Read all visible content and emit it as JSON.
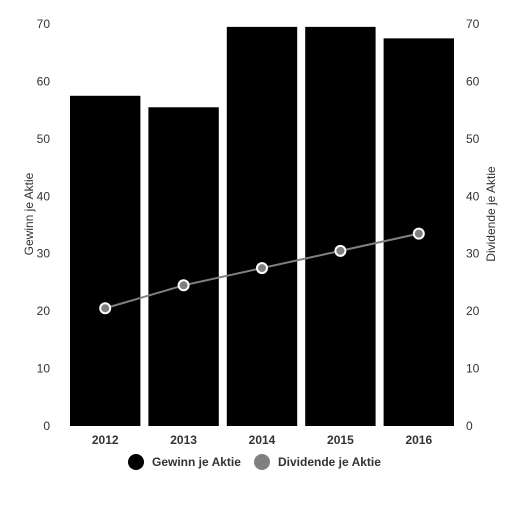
{
  "chart_data": {
    "type": "bar",
    "categories": [
      "2012",
      "2013",
      "2014",
      "2015",
      "2016"
    ],
    "series": [
      {
        "name": "Gewinn je Aktie",
        "type": "bar",
        "axis": "left",
        "color": "#000000",
        "values": [
          57.5,
          55.5,
          69.5,
          69.5,
          67.5
        ]
      },
      {
        "name": "Dividende je Aktie",
        "type": "line",
        "axis": "right",
        "color": "#808080",
        "values": [
          20.5,
          24.5,
          27.5,
          30.5,
          33.5
        ]
      }
    ],
    "ylabel": "Gewinn je Aktie",
    "ylabel_right": "Dividende je Aktie",
    "ylim": [
      0,
      70
    ],
    "ylim_right": [
      0,
      70
    ],
    "yticks": [
      "0",
      "10",
      "20",
      "30",
      "40",
      "50",
      "60",
      "70"
    ],
    "yticks_right": [
      "0",
      "10",
      "20",
      "30",
      "40",
      "50",
      "60",
      "70"
    ],
    "grid": false,
    "legend_position": "bottom-center"
  }
}
